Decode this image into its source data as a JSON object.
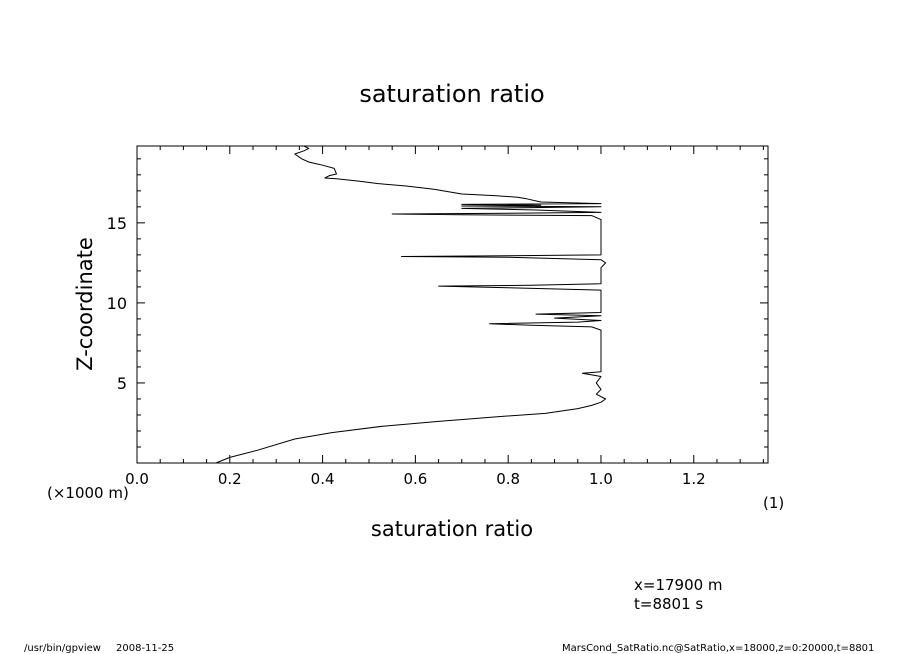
{
  "chart_data": {
    "type": "line",
    "title": "saturation ratio",
    "xlabel": "saturation ratio",
    "ylabel": "Z-coordinate",
    "x_unit": "(1)",
    "y_unit": "(×1000 m)",
    "xlim": [
      0.0,
      1.36
    ],
    "ylim": [
      0.0,
      19.8
    ],
    "x_ticks": [
      "0.0",
      "0.2",
      "0.4",
      "0.6",
      "0.8",
      "1.0",
      "1.2"
    ],
    "x_tick_values": [
      0.0,
      0.2,
      0.4,
      0.6,
      0.8,
      1.0,
      1.2
    ],
    "y_ticks": [
      "5",
      "10",
      "15"
    ],
    "y_tick_values": [
      5,
      10,
      15
    ],
    "grid": false,
    "series": [
      {
        "points": [
          [
            0.17,
            0.0
          ],
          [
            0.2,
            0.35
          ],
          [
            0.26,
            0.8
          ],
          [
            0.34,
            1.5
          ],
          [
            0.42,
            1.9
          ],
          [
            0.53,
            2.3
          ],
          [
            0.65,
            2.6
          ],
          [
            0.78,
            2.9
          ],
          [
            0.88,
            3.1
          ],
          [
            0.95,
            3.4
          ],
          [
            0.98,
            3.6
          ],
          [
            1.0,
            3.8
          ],
          [
            1.01,
            4.0
          ],
          [
            0.99,
            4.3
          ],
          [
            1.0,
            4.6
          ],
          [
            0.99,
            5.0
          ],
          [
            1.0,
            5.4
          ],
          [
            0.96,
            5.6
          ],
          [
            1.0,
            5.7
          ],
          [
            1.0,
            6.5
          ],
          [
            1.0,
            7.5
          ],
          [
            1.0,
            8.3
          ],
          [
            0.98,
            8.5
          ],
          [
            0.85,
            8.6
          ],
          [
            0.76,
            8.7
          ],
          [
            0.95,
            8.8
          ],
          [
            1.0,
            8.9
          ],
          [
            0.9,
            9.05
          ],
          [
            1.0,
            9.2
          ],
          [
            0.86,
            9.3
          ],
          [
            1.0,
            9.4
          ],
          [
            1.0,
            10.0
          ],
          [
            1.0,
            10.8
          ],
          [
            0.8,
            10.95
          ],
          [
            0.65,
            11.05
          ],
          [
            0.85,
            11.1
          ],
          [
            1.0,
            11.2
          ],
          [
            1.0,
            11.6
          ],
          [
            1.0,
            12.2
          ],
          [
            1.01,
            12.5
          ],
          [
            1.0,
            12.7
          ],
          [
            0.8,
            12.85
          ],
          [
            0.57,
            12.9
          ],
          [
            0.8,
            12.95
          ],
          [
            1.0,
            13.0
          ],
          [
            1.0,
            14.0
          ],
          [
            1.0,
            15.2
          ],
          [
            0.98,
            15.45
          ],
          [
            0.7,
            15.5
          ],
          [
            0.55,
            15.55
          ],
          [
            0.8,
            15.6
          ],
          [
            1.0,
            15.65
          ],
          [
            0.86,
            15.8
          ],
          [
            0.7,
            15.9
          ],
          [
            0.85,
            15.95
          ],
          [
            1.0,
            16.0
          ],
          [
            0.7,
            16.05
          ],
          [
            0.87,
            16.1
          ],
          [
            0.7,
            16.15
          ],
          [
            1.0,
            16.2
          ],
          [
            0.87,
            16.3
          ],
          [
            0.84,
            16.5
          ],
          [
            0.82,
            16.6
          ],
          [
            0.77,
            16.7
          ],
          [
            0.7,
            16.8
          ],
          [
            0.64,
            17.1
          ],
          [
            0.58,
            17.3
          ],
          [
            0.52,
            17.45
          ],
          [
            0.48,
            17.6
          ],
          [
            0.43,
            17.75
          ],
          [
            0.405,
            17.8
          ],
          [
            0.415,
            17.95
          ],
          [
            0.43,
            18.05
          ],
          [
            0.425,
            18.4
          ],
          [
            0.4,
            18.6
          ],
          [
            0.385,
            18.7
          ],
          [
            0.37,
            18.8
          ],
          [
            0.355,
            19.0
          ],
          [
            0.34,
            19.3
          ],
          [
            0.36,
            19.5
          ],
          [
            0.37,
            19.65
          ],
          [
            0.36,
            19.8
          ]
        ]
      }
    ]
  },
  "annotations": {
    "coords_x": "x=17900  m",
    "coords_t": "t=8801  s"
  },
  "footer": {
    "left_path": "/usr/bin/gpview",
    "date": "2008-11-25",
    "source": "MarsCond_SatRatio.nc@SatRatio,x=18000,z=0:20000,t=8801"
  }
}
